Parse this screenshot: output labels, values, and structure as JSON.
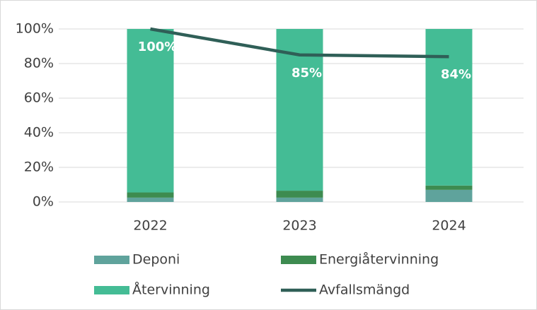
{
  "chart_data": {
    "type": "bar",
    "stacked": true,
    "categories": [
      "2022",
      "2023",
      "2024"
    ],
    "series": [
      {
        "name": "Deponi",
        "color": "#5fa39c",
        "values": [
          2.5,
          2.5,
          7
        ]
      },
      {
        "name": "Energiåtervinning",
        "color": "#3d8b50",
        "values": [
          3,
          4,
          2.5
        ]
      },
      {
        "name": "Återvinning",
        "color": "#44bc95",
        "values": [
          94.5,
          93.5,
          90.5
        ]
      },
      {
        "name": "Avfallsmängd",
        "type": "line",
        "color": "#2f5f57",
        "values": [
          100,
          85,
          84
        ],
        "value_labels": [
          "100%",
          "85%",
          "84%"
        ]
      }
    ],
    "ylim": [
      0,
      100
    ],
    "yticks": [
      {
        "value": 0,
        "label": "0%"
      },
      {
        "value": 20,
        "label": "20%"
      },
      {
        "value": 40,
        "label": "40%"
      },
      {
        "value": 60,
        "label": "60%"
      },
      {
        "value": 80,
        "label": "80%"
      },
      {
        "value": 100,
        "label": "100%"
      }
    ],
    "grid": true,
    "legend": "bottom"
  }
}
